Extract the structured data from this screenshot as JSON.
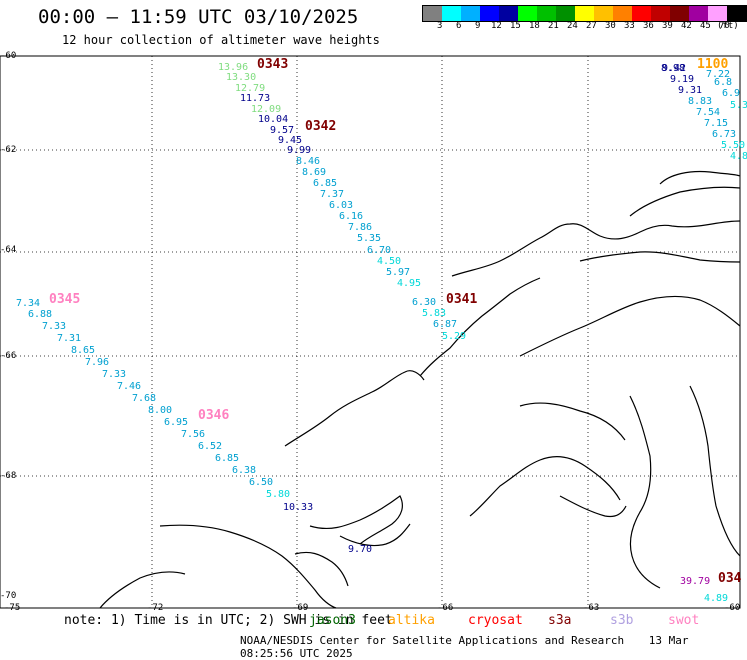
{
  "header": {
    "title": "00:00 – 11:59 UTC 03/10/2025",
    "subtitle": "12 hour collection of altimeter wave heights"
  },
  "colorbar": {
    "unit": "(ft)",
    "labels": [
      "3",
      "6",
      "9",
      "12",
      "15",
      "18",
      "21",
      "24",
      "27",
      "30",
      "33",
      "36",
      "39",
      "42",
      "45",
      "70"
    ],
    "colors": [
      "#808080",
      "#00ffff",
      "#00b0ff",
      "#0000ff",
      "#0000a0",
      "#00ff00",
      "#00c000",
      "#009000",
      "#ffff00",
      "#ffc000",
      "#ff8000",
      "#ff0000",
      "#c00000",
      "#800000",
      "#a000a0",
      "#ffa0ff",
      "#000000"
    ]
  },
  "axes": {
    "lat_labels": [
      "-60",
      "-62",
      "-64",
      "-66",
      "-68",
      "-70"
    ],
    "lon_labels": [
      "-75",
      "-72",
      "-69",
      "-66",
      "-63",
      "-60"
    ]
  },
  "tracks": [
    {
      "time": "0343",
      "time_color": "#800000",
      "points": [
        {
          "v": "13.96",
          "c": "#7fdc7f"
        },
        {
          "v": "13.30",
          "c": "#7fdc7f"
        },
        {
          "v": "12.79",
          "c": "#7fdc7f"
        },
        {
          "v": "11.73",
          "c": "#00008b"
        },
        {
          "v": "12.09",
          "c": "#7fdc7f"
        },
        {
          "v": "10.04",
          "c": "#00008b"
        },
        {
          "v": "9.57",
          "c": "#00008b"
        },
        {
          "v": "9.45",
          "c": "#00008b"
        },
        {
          "v": "9.99",
          "c": "#00008b"
        }
      ]
    },
    {
      "time": "0342",
      "time_color": "#800000",
      "points": [
        {
          "v": "8.46",
          "c": "#00a0d0"
        },
        {
          "v": "8.69",
          "c": "#00a0d0"
        },
        {
          "v": "6.85",
          "c": "#00a0d0"
        },
        {
          "v": "7.37",
          "c": "#00a0d0"
        },
        {
          "v": "6.03",
          "c": "#00a0d0"
        },
        {
          "v": "6.16",
          "c": "#00a0d0"
        },
        {
          "v": "7.86",
          "c": "#00a0d0"
        },
        {
          "v": "5.35",
          "c": "#00a0d0"
        },
        {
          "v": "6.70",
          "c": "#00a0d0"
        },
        {
          "v": "4.50",
          "c": "#00d8d8"
        },
        {
          "v": "5.97",
          "c": "#00a0d0"
        },
        {
          "v": "4.95",
          "c": "#00d8d8"
        }
      ]
    },
    {
      "time": "0341",
      "time_color": "#800000",
      "points": [
        {
          "v": "6.30",
          "c": "#00a0d0"
        },
        {
          "v": "5.83",
          "c": "#00d8d8"
        },
        {
          "v": "6.87",
          "c": "#00a0d0"
        },
        {
          "v": "5.29",
          "c": "#00d8d8"
        }
      ]
    },
    {
      "time": "0345",
      "time_color": "#ff80c0",
      "points": [
        {
          "v": "7.34",
          "c": "#00a0d0"
        },
        {
          "v": "6.88",
          "c": "#00a0d0"
        },
        {
          "v": "7.33",
          "c": "#00a0d0"
        },
        {
          "v": "7.31",
          "c": "#00a0d0"
        },
        {
          "v": "8.65",
          "c": "#00a0d0"
        },
        {
          "v": "7.96",
          "c": "#00a0d0"
        },
        {
          "v": "7.33",
          "c": "#00a0d0"
        },
        {
          "v": "7.46",
          "c": "#00a0d0"
        },
        {
          "v": "7.68",
          "c": "#00a0d0"
        },
        {
          "v": "8.00",
          "c": "#00a0d0"
        },
        {
          "v": "6.95",
          "c": "#00a0d0"
        }
      ]
    },
    {
      "time": "0346",
      "time_color": "#ff80c0",
      "points": [
        {
          "v": "7.56",
          "c": "#00a0d0"
        },
        {
          "v": "6.52",
          "c": "#00a0d0"
        },
        {
          "v": "6.85",
          "c": "#00a0d0"
        },
        {
          "v": "6.38",
          "c": "#00a0d0"
        },
        {
          "v": "6.50",
          "c": "#00a0d0"
        },
        {
          "v": "5.80",
          "c": "#00d8d8"
        },
        {
          "v": "10.33",
          "c": "#00008b"
        },
        {
          "v": "9.70",
          "c": "#00008b"
        }
      ]
    },
    {
      "time": "1100",
      "time_color": "#ffa000",
      "points": [
        {
          "v": "8.98",
          "c": "#00008b"
        },
        {
          "v": "9.42",
          "c": "#00008b"
        },
        {
          "v": "9.19",
          "c": "#00008b"
        },
        {
          "v": "9.31",
          "c": "#00008b"
        },
        {
          "v": "8.83",
          "c": "#00a0d0"
        },
        {
          "v": "7.54",
          "c": "#00a0d0"
        },
        {
          "v": "7.15",
          "c": "#00a0d0"
        },
        {
          "v": "6.73",
          "c": "#00a0d0"
        },
        {
          "v": "5.50",
          "c": "#00d8d8"
        },
        {
          "v": "4.8",
          "c": "#00d8d8"
        }
      ]
    },
    {
      "time": "",
      "points": [
        {
          "v": "7.22",
          "c": "#00a0d0"
        },
        {
          "v": "6.8",
          "c": "#00a0d0"
        },
        {
          "v": "6.9",
          "c": "#00a0d0"
        },
        {
          "v": "5.3",
          "c": "#00d8d8"
        }
      ]
    },
    {
      "time": "034",
      "time_color": "#800000",
      "points": [
        {
          "v": "39.79",
          "c": "#a000a0"
        },
        {
          "v": "4.89",
          "c": "#00d8d8"
        }
      ]
    }
  ],
  "note": {
    "text": "note: 1) Time is in UTC; 2) SWH is in feet",
    "missions": [
      {
        "label": "jason3",
        "color": "#006400"
      },
      {
        "label": "altika",
        "color": "#ffa000"
      },
      {
        "label": "cryosat",
        "color": "#ff0000"
      },
      {
        "label": "s3a",
        "color": "#800000"
      },
      {
        "label": "s3b",
        "color": "#b0a0e0"
      },
      {
        "label": "swot",
        "color": "#ff80c0"
      }
    ]
  },
  "footer": {
    "credit": "NOAA/NESDIS Center for Satellite Applications and Research",
    "timestamp": "13 Mar 08:25:56 UTC 2025"
  }
}
